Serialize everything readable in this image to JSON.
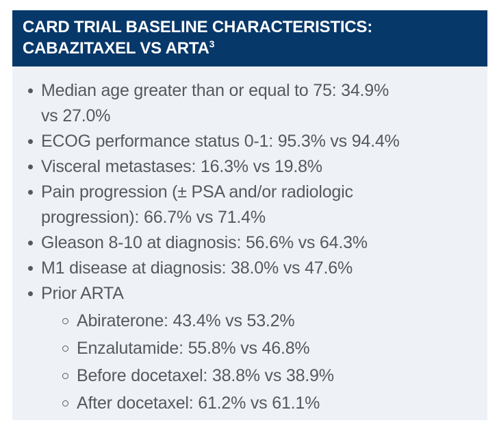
{
  "header": {
    "line1": "CARD TRIAL BASELINE CHARACTERISTICS:",
    "line2": "CABAZITAXEL VS ARTA",
    "reference": "3"
  },
  "list": {
    "items": [
      {
        "text": "Median age greater than or equal to 75: 34.9%\nvs 27.0%"
      },
      {
        "text": "ECOG performance status 0-1: 95.3% vs 94.4%"
      },
      {
        "text": "Visceral metastases: 16.3% vs 19.8%"
      },
      {
        "text": "Pain progression (± PSA and/or radiologic\nprogression): 66.7% vs 71.4%"
      },
      {
        "text": "Gleason 8-10 at diagnosis: 56.6% vs 64.3%"
      },
      {
        "text": "M1 disease at diagnosis: 38.0% vs 47.6%"
      },
      {
        "text": "Prior ARTA"
      }
    ],
    "sub_items": [
      {
        "text": "Abiraterone: 43.4% vs 53.2%"
      },
      {
        "text": "Enzalutamide: 55.8% vs 46.8%"
      },
      {
        "text": "Before docetaxel: 38.8% vs 38.9%"
      },
      {
        "text": "After docetaxel: 61.2% vs 61.1%"
      }
    ]
  },
  "colors": {
    "header_bg": "#07386a",
    "header_text": "#ffffff",
    "body_bg": "#eef2f7",
    "text": "#57585c"
  }
}
